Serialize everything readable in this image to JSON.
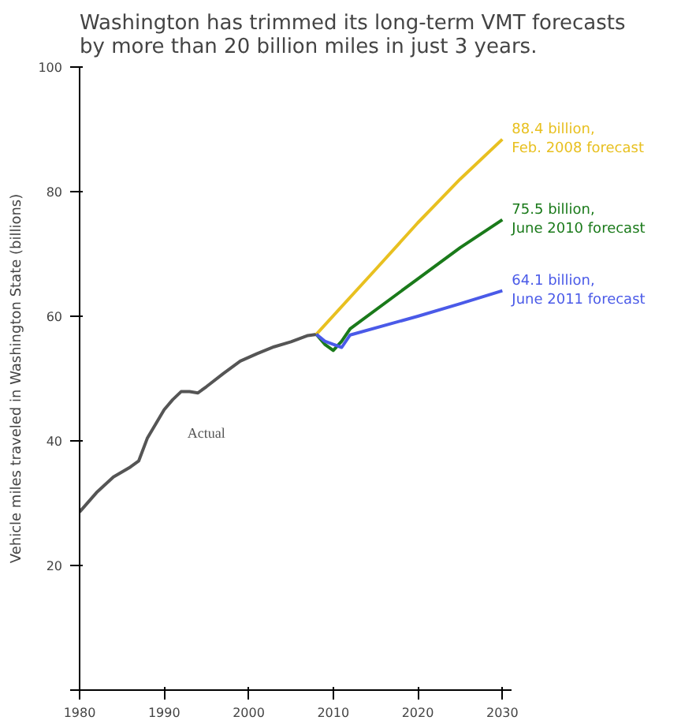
{
  "chart_data": {
    "type": "line",
    "title": "Washington has trimmed its long-term VMT forecasts\nby more than 20 billion miles in just 3 years.",
    "ylabel": "Vehicle miles traveled in Washington State (billions)",
    "xlim": [
      1980,
      2031
    ],
    "xticks": [
      1980,
      1990,
      2000,
      2010,
      2020,
      2030
    ],
    "ylim": [
      0,
      100
    ],
    "yticks": [
      {
        "value": 0,
        "label": null
      },
      20,
      40,
      60,
      80,
      100
    ],
    "grid": false,
    "marker": "none",
    "line_style": "solid",
    "annotations": [
      "Actual"
    ],
    "series": [
      {
        "color": "#555555",
        "x": [
          1980,
          1982,
          1984,
          1986,
          1987,
          1988,
          1990,
          1991,
          1992,
          1993,
          1994,
          1995,
          1997,
          1999,
          2001,
          2003,
          2005,
          2007,
          2008
        ],
        "values": [
          28.6,
          31.7,
          34.2,
          35.8,
          36.8,
          40.4,
          45,
          46.6,
          47.9,
          47.9,
          47.7,
          48.7,
          50.8,
          52.8,
          54,
          55.1,
          55.9,
          56.9,
          57.1
        ]
      },
      {
        "name": "88.4 billion,\nFeb. 2008 forecast",
        "color": "#e8c020",
        "x": [
          2008,
          2015,
          2020,
          2025,
          2030
        ],
        "values": [
          57.1,
          67.5,
          75,
          82,
          88.4
        ]
      },
      {
        "name": "75.5 billion,\nJune 2010 forecast",
        "color": "#1a7a1a",
        "x": [
          2008,
          2009,
          2010,
          2011,
          2012,
          2020,
          2025,
          2030
        ],
        "values": [
          57.1,
          55.5,
          54.5,
          56,
          58,
          66,
          71,
          75.5
        ]
      },
      {
        "name": "64.1 billion,\nJune 2011 forecast",
        "color": "#4a5ae8",
        "x": [
          2008,
          2009,
          2010,
          2011,
          2012,
          2020,
          2025,
          2030
        ],
        "values": [
          57.1,
          56,
          55.5,
          55,
          57,
          60,
          62,
          64.1
        ]
      }
    ]
  }
}
